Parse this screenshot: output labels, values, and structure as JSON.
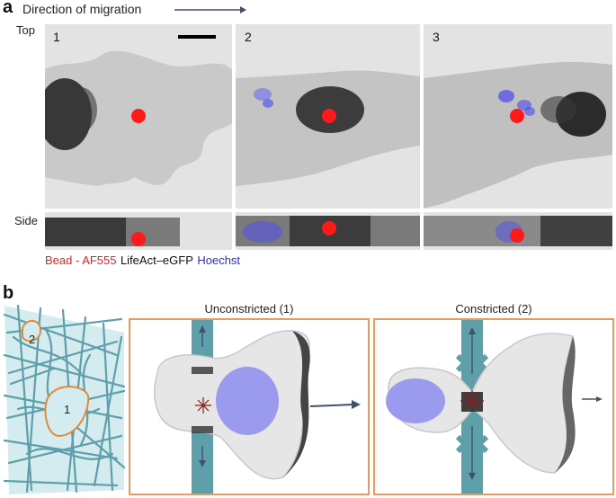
{
  "panel_a": {
    "letter": "a",
    "direction_label": "Direction of migration",
    "row_top_label": "Top",
    "row_side_label": "Side",
    "frames": [
      "1",
      "2",
      "3"
    ],
    "legend": {
      "bead": "Bead - AF555",
      "lifeact": "LifeAct–eGFP",
      "hoechst": "Hoechst"
    },
    "colors": {
      "bead": "#ff2020",
      "lifeact": "#111111",
      "hoechst": "#2f2fe6"
    }
  },
  "panel_b": {
    "letter": "b",
    "pore_labels": [
      "2",
      "1"
    ],
    "unconstricted_title": "Unconstricted (1)",
    "constricted_title": "Constricted (2)",
    "colors": {
      "fiber": "#5f9faa",
      "box_border": "#ea9a5a",
      "nucleus": "#9a9bee",
      "cell": "#e6e6e6",
      "myosin": "#8b1a1a"
    }
  }
}
